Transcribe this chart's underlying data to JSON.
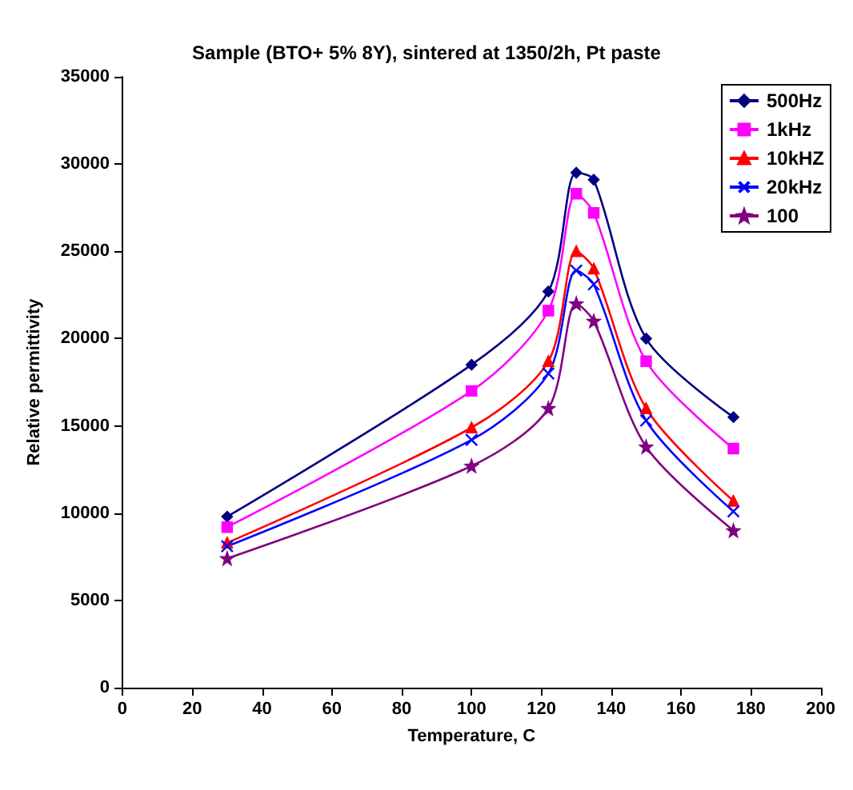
{
  "chart_data": {
    "type": "line",
    "title": "Sample (BTO+ 5% 8Y), sintered at 1350/2h, Pt paste",
    "xlabel": "Temperature, C",
    "ylabel": "Relative permittivity",
    "x": [
      30,
      100,
      122,
      130,
      135,
      150,
      175
    ],
    "series": [
      {
        "name": "500Hz",
        "color": "#000080",
        "marker": "diamond",
        "values": [
          9800,
          18500,
          22700,
          29500,
          29100,
          20000,
          15500
        ]
      },
      {
        "name": "1kHz",
        "color": "#ff00ff",
        "marker": "square",
        "values": [
          9200,
          17000,
          21600,
          28300,
          27200,
          18700,
          13700
        ]
      },
      {
        "name": "10kHZ",
        "color": "#ff0000",
        "marker": "triangle",
        "values": [
          8300,
          14900,
          18700,
          25000,
          24000,
          16000,
          10700
        ]
      },
      {
        "name": "20kHz",
        "color": "#0000ff",
        "marker": "cross",
        "values": [
          8100,
          14200,
          18000,
          23900,
          23100,
          15300,
          10100
        ]
      },
      {
        "name": "100",
        "color": "#800080",
        "marker": "star",
        "values": [
          7400,
          12700,
          16000,
          22000,
          21000,
          13800,
          9000
        ]
      }
    ],
    "xlim": [
      0,
      200
    ],
    "xticks": [
      0,
      20,
      40,
      60,
      80,
      100,
      120,
      140,
      160,
      180,
      200
    ],
    "ylim": [
      0,
      35000
    ],
    "yticks": [
      0,
      5000,
      10000,
      15000,
      20000,
      25000,
      30000,
      35000
    ],
    "grid": false,
    "legend": "top right",
    "line_style": "solid"
  }
}
